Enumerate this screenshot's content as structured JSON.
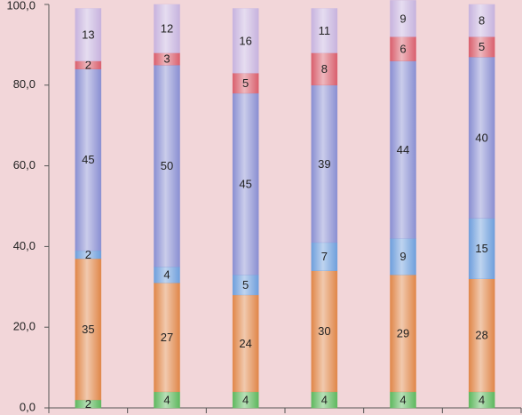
{
  "chart_data": {
    "type": "stacked-bar",
    "categories": [
      null,
      null,
      null,
      null,
      null,
      null
    ],
    "ylim": [
      0,
      100
    ],
    "yticks": [
      {
        "value": 0,
        "label": "0,0"
      },
      {
        "value": 20,
        "label": "20,0"
      },
      {
        "value": 40,
        "label": "40,0"
      },
      {
        "value": 60,
        "label": "60,0"
      },
      {
        "value": 80,
        "label": "80,0"
      },
      {
        "value": 100,
        "label": "100,0"
      }
    ],
    "series": [
      {
        "color": "#5fb85f",
        "values": [
          2,
          4,
          4,
          4,
          4,
          4
        ]
      },
      {
        "color": "#e0874a",
        "values": [
          35,
          27,
          24,
          30,
          29,
          28
        ]
      },
      {
        "color": "#6f9fdc",
        "values": [
          2,
          4,
          5,
          7,
          9,
          15
        ]
      },
      {
        "color": "#8a8fd2",
        "values": [
          45,
          50,
          45,
          39,
          44,
          40
        ]
      },
      {
        "color": "#d9606e",
        "values": [
          2,
          3,
          5,
          8,
          6,
          5
        ]
      },
      {
        "color": "#c7b3de",
        "values": [
          13,
          12,
          16,
          11,
          9,
          8
        ]
      }
    ]
  }
}
